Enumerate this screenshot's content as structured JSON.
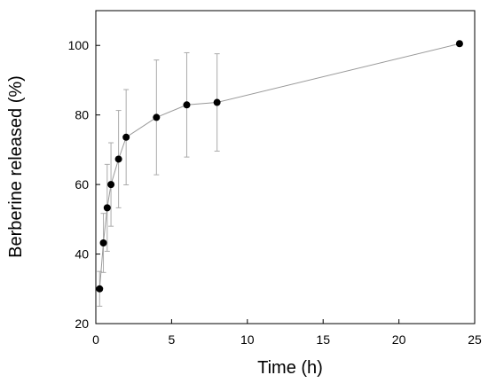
{
  "chart_data": {
    "type": "line",
    "xlabel": "Time (h)",
    "ylabel": "Berberine released (%)",
    "xlim": [
      0,
      25
    ],
    "ylim": [
      20,
      110
    ],
    "xticks": [
      0,
      5,
      10,
      15,
      20,
      25
    ],
    "yticks": [
      20,
      40,
      60,
      80,
      100
    ],
    "grid": false,
    "legend": "none",
    "series": [
      {
        "x": [
          0.25,
          0.5,
          0.75,
          1,
          1.5,
          2,
          4,
          6,
          8,
          24
        ],
        "y": [
          30,
          43.2,
          53.3,
          60,
          67.3,
          73.6,
          79.3,
          82.9,
          83.6,
          100.5
        ],
        "error": [
          5,
          8.5,
          12.5,
          12,
          14,
          13.7,
          16.5,
          15,
          14,
          0
        ]
      }
    ],
    "colors": {
      "line": "#999999",
      "marker": "#000000",
      "errorbar": "#aaaaaa",
      "axis": "#000000"
    }
  }
}
